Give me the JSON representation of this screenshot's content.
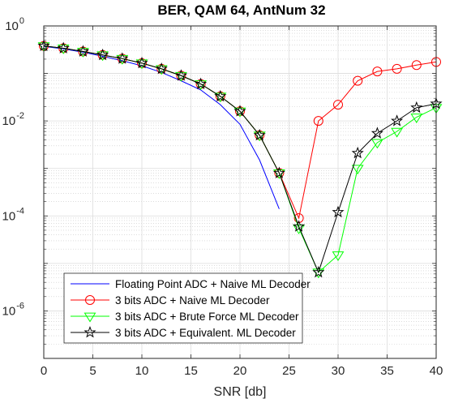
{
  "chart_data": {
    "type": "line",
    "title": "BER, QAM 64, AntNum 32",
    "xlabel": "SNR [db]",
    "ylabel": "",
    "xlim": [
      0,
      40
    ],
    "ylim": [
      1e-07,
      1
    ],
    "yscale": "log",
    "grid": true,
    "minor_grid": true,
    "legend_position": "bottom-left",
    "x_ticks": [
      "0",
      "5",
      "10",
      "15",
      "20",
      "25",
      "30",
      "35",
      "40"
    ],
    "y_ticks": [
      {
        "base": "10",
        "exp": "0",
        "value": 1
      },
      {
        "base": "10",
        "exp": "-2",
        "value": 0.01
      },
      {
        "base": "10",
        "exp": "-4",
        "value": 0.0001
      },
      {
        "base": "10",
        "exp": "-6",
        "value": 1e-06
      }
    ],
    "series": [
      {
        "name": "Floating Point ADC + Naive ML Decoder",
        "color": "#0000ff",
        "marker": "none",
        "x": [
          0,
          2,
          4,
          6,
          8,
          10,
          12,
          14,
          16,
          18,
          20,
          22,
          24
        ],
        "y": [
          0.37,
          0.33,
          0.28,
          0.23,
          0.185,
          0.145,
          0.105,
          0.07,
          0.045,
          0.022,
          0.0085,
          0.0015,
          0.00014
        ]
      },
      {
        "name": "3 bits ADC + Naive ML Decoder",
        "color": "#ff0000",
        "marker": "circle",
        "x": [
          0,
          2,
          4,
          6,
          8,
          10,
          12,
          14,
          16,
          18,
          20,
          22,
          24,
          26,
          28,
          30,
          32,
          34,
          36,
          38,
          40
        ],
        "y": [
          0.38,
          0.34,
          0.29,
          0.245,
          0.205,
          0.165,
          0.125,
          0.09,
          0.06,
          0.033,
          0.016,
          0.005,
          0.0008,
          9e-05,
          0.01,
          0.022,
          0.07,
          0.11,
          0.125,
          0.15,
          0.175
        ]
      },
      {
        "name": "3 bits ADC + Brute Force ML Decoder",
        "color": "#00ff00",
        "marker": "triangle-down",
        "x": [
          0,
          2,
          4,
          6,
          8,
          10,
          12,
          14,
          16,
          18,
          20,
          22,
          24,
          26,
          28,
          30,
          32,
          34,
          36,
          38,
          40
        ],
        "y": [
          0.38,
          0.34,
          0.29,
          0.245,
          0.205,
          0.165,
          0.125,
          0.09,
          0.06,
          0.033,
          0.016,
          0.005,
          0.0008,
          5.5e-05,
          6.5e-06,
          1.5e-05,
          0.001,
          0.0035,
          0.006,
          0.012,
          0.019
        ]
      },
      {
        "name": "3 bits ADC + Equivalent. ML Decoder",
        "color": "#000000",
        "marker": "star",
        "x": [
          0,
          2,
          4,
          6,
          8,
          10,
          12,
          14,
          16,
          18,
          20,
          22,
          24,
          26,
          28,
          30,
          32,
          34,
          36,
          38,
          40
        ],
        "y": [
          0.38,
          0.34,
          0.29,
          0.245,
          0.205,
          0.165,
          0.125,
          0.09,
          0.06,
          0.033,
          0.016,
          0.005,
          0.0008,
          6e-05,
          6.5e-06,
          0.00012,
          0.0021,
          0.0055,
          0.01,
          0.019,
          0.023
        ]
      }
    ]
  }
}
